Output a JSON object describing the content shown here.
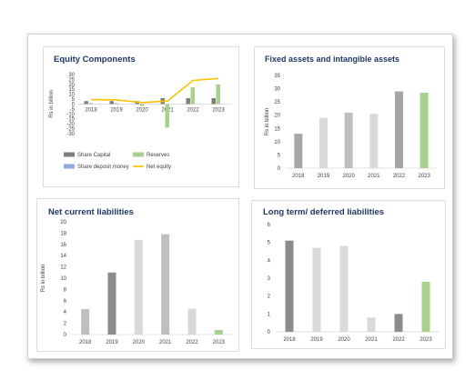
{
  "chart_data": [
    {
      "id": "equity",
      "type": "bar",
      "title": "Equity Components",
      "ylabel": "Rs in billion",
      "ylim": [
        -30,
        30
      ],
      "yticks": [
        30,
        25,
        20,
        15,
        10,
        5,
        0,
        -5,
        -10,
        -15,
        -20,
        -25,
        -30
      ],
      "categories": [
        "2018",
        "2019",
        "2020",
        "2021",
        "2022",
        "2023"
      ],
      "series": [
        {
          "name": "Share Capital",
          "kind": "bar",
          "color": "#7f7f7f",
          "values": [
            3,
            3,
            3,
            6,
            6,
            6
          ]
        },
        {
          "name": "Reserves",
          "kind": "bar",
          "color": "#a9d18e",
          "values": [
            1,
            1,
            -2,
            -24,
            17,
            20
          ]
        },
        {
          "name": "Share deposit money",
          "kind": "bar",
          "color": "#8faadc",
          "values": [
            0,
            0,
            0,
            0,
            0,
            0
          ]
        },
        {
          "name": "Net equity",
          "kind": "line",
          "color": "#ffc000",
          "values": [
            4.5,
            4.2,
            1.5,
            3,
            24,
            26
          ]
        }
      ],
      "legend": "bottom"
    },
    {
      "id": "fixed",
      "type": "bar",
      "title": "Fixed assets and intangible assets",
      "ylabel": "Rs in billion",
      "ylim": [
        0,
        35
      ],
      "yticks": [
        35,
        30,
        25,
        20,
        15,
        10,
        5,
        0
      ],
      "categories": [
        "2018",
        "2019",
        "2020",
        "2021",
        "2022",
        "2023"
      ],
      "values": [
        13,
        19,
        21,
        20.5,
        29,
        28.5
      ],
      "colors": [
        "#a6a6a6",
        "#d9d9d9",
        "#bfbfbf",
        "#d9d9d9",
        "#a6a6a6",
        "#a9d18e"
      ]
    },
    {
      "id": "ncl",
      "type": "bar",
      "title": "Net current liabilities",
      "ylabel": "Rs in billion",
      "ylim": [
        0,
        20
      ],
      "yticks": [
        20,
        18,
        16,
        14,
        12,
        10,
        8,
        6,
        4,
        2,
        0
      ],
      "categories": [
        "2018",
        "2019",
        "2020",
        "2021",
        "2022",
        "2023"
      ],
      "values": [
        4.5,
        11,
        16.8,
        17.8,
        4.6,
        0.8
      ],
      "colors": [
        "#bfbfbf",
        "#8c8c8c",
        "#d9d9d9",
        "#bfbfbf",
        "#d9d9d9",
        "#a9d18e"
      ]
    },
    {
      "id": "ltdl",
      "type": "bar",
      "title": "Long term/ deferred liabilities",
      "ylabel": "",
      "ylim": [
        0,
        6
      ],
      "yticks": [
        6,
        5,
        4,
        3,
        2,
        1,
        0
      ],
      "categories": [
        "2018",
        "2019",
        "2020",
        "2021",
        "2022",
        "2023"
      ],
      "values": [
        5.1,
        4.7,
        4.8,
        0.8,
        1,
        2.8
      ],
      "colors": [
        "#8c8c8c",
        "#d9d9d9",
        "#d9d9d9",
        "#d9d9d9",
        "#8c8c8c",
        "#a9d18e"
      ]
    }
  ]
}
